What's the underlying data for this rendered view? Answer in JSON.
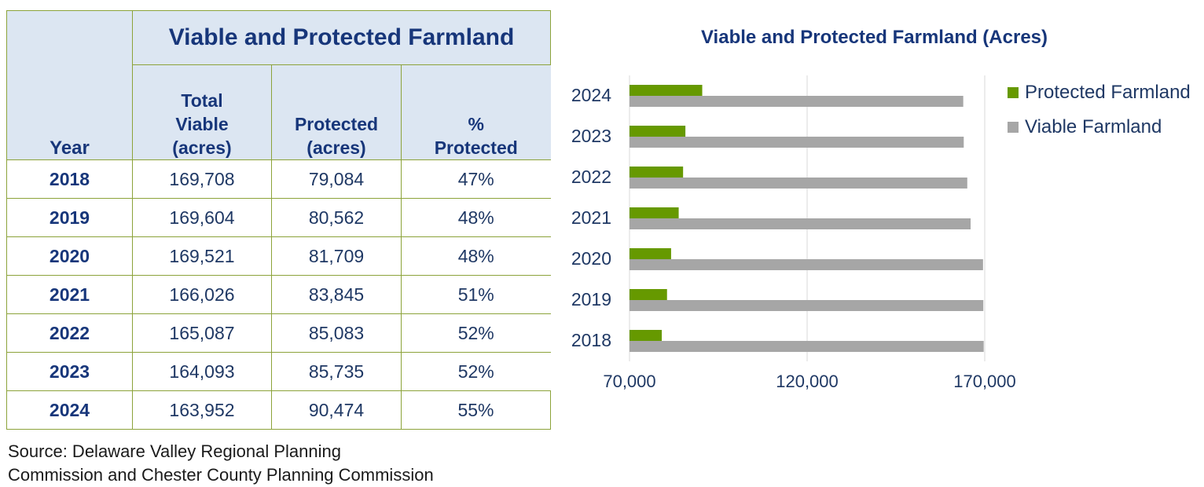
{
  "table": {
    "group_header": "Viable and Protected Farmland",
    "headers": {
      "year": "Year",
      "total_viable": [
        "Total",
        "Viable",
        "(acres)"
      ],
      "protected": [
        "Protected",
        "(acres)"
      ],
      "pct_protected": [
        "%",
        "Protected"
      ]
    },
    "rows": [
      {
        "year": "2018",
        "total_viable": "169,708",
        "protected": "79,084",
        "pct": "47%"
      },
      {
        "year": "2019",
        "total_viable": "169,604",
        "protected": "80,562",
        "pct": "48%"
      },
      {
        "year": "2020",
        "total_viable": "169,521",
        "protected": "81,709",
        "pct": "48%"
      },
      {
        "year": "2021",
        "total_viable": "166,026",
        "protected": "83,845",
        "pct": "51%"
      },
      {
        "year": "2022",
        "total_viable": "165,087",
        "protected": "85,083",
        "pct": "52%"
      },
      {
        "year": "2023",
        "total_viable": "164,093",
        "protected": "85,735",
        "pct": "52%"
      },
      {
        "year": "2024",
        "total_viable": "163,952",
        "protected": "90,474",
        "pct": "55%"
      }
    ]
  },
  "source": {
    "line1": "Source: Delaware Valley Regional Planning",
    "line2": "Commission and Chester County Planning Commission"
  },
  "chart_data": {
    "type": "bar",
    "orientation": "horizontal",
    "title": "Viable and Protected Farmland (Acres)",
    "categories": [
      "2024",
      "2023",
      "2022",
      "2021",
      "2020",
      "2019",
      "2018"
    ],
    "series": [
      {
        "name": "Protected Farmland",
        "color": "#669900",
        "values": [
          90474,
          85735,
          85083,
          83845,
          81709,
          80562,
          79084
        ]
      },
      {
        "name": "Viable Farmland",
        "color": "#a6a6a6",
        "values": [
          163952,
          164093,
          165087,
          166026,
          169521,
          169604,
          169708
        ]
      }
    ],
    "xlim": [
      70000,
      170000
    ],
    "xticks": [
      70000,
      120000,
      170000
    ],
    "xtick_labels": [
      "70,000",
      "120,000",
      "170,000"
    ],
    "xlabel": "",
    "ylabel": "",
    "grid": "vertical",
    "legend_position": "right"
  }
}
